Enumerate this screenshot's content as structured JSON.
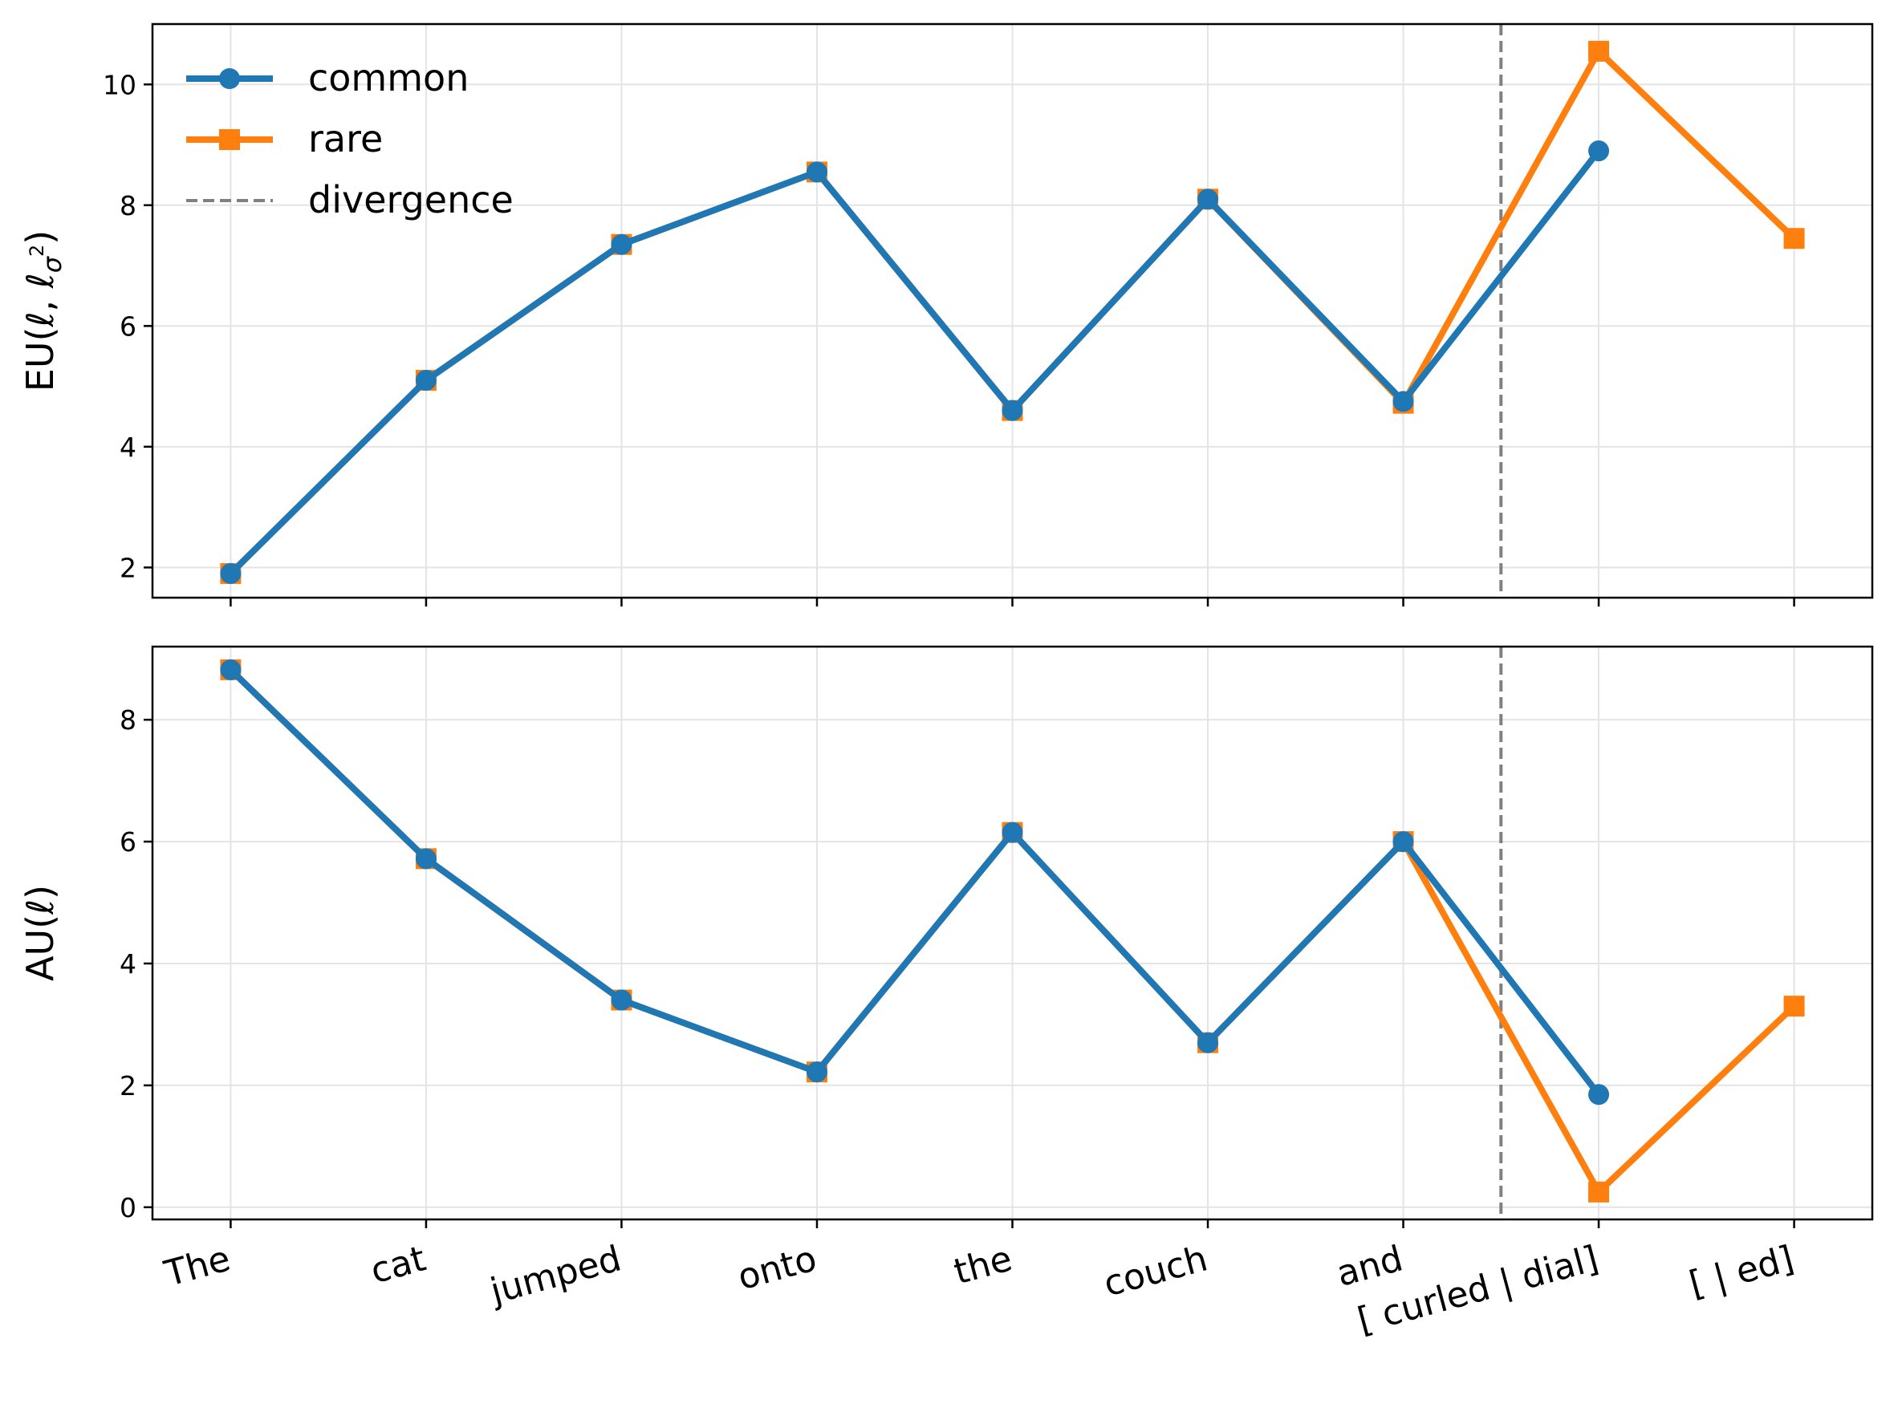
{
  "chart_data": {
    "type": "line",
    "categories": [
      "The",
      "cat",
      "jumped",
      "onto",
      "the",
      "couch",
      "and",
      "[ curled |  dial]",
      "[ | ed]"
    ],
    "category_lines": [
      [
        "The"
      ],
      [
        "cat"
      ],
      [
        "jumped"
      ],
      [
        "onto"
      ],
      [
        "the"
      ],
      [
        "couch"
      ],
      [
        "and"
      ],
      [
        "[ curled |  dial]"
      ],
      [
        "[ | ed]"
      ]
    ],
    "grid": true,
    "legend": {
      "placement": "top-left",
      "entries": [
        "common",
        "rare",
        "divergence"
      ]
    },
    "colors": {
      "common": "#1f77b4",
      "rare": "#ff7f0e",
      "divergence": "#808080"
    },
    "divergence_x": 6.5,
    "panels": [
      {
        "ylabel": "EU(ℓ, ℓσ²)",
        "ylabel_main": "EU(ℓ, ℓ",
        "ylabel_sub": "σ",
        "ylabel_sup": "2",
        "ylabel_end": ")",
        "ylim": [
          1.5,
          11.0
        ],
        "yticks": [
          2,
          4,
          6,
          8,
          10
        ],
        "series": [
          {
            "name": "common",
            "marker": "circle",
            "x": [
              0,
              1,
              2,
              3,
              4,
              5,
              6,
              7
            ],
            "values": [
              1.9,
              5.1,
              7.35,
              8.55,
              4.6,
              8.1,
              4.75,
              8.9
            ]
          },
          {
            "name": "rare",
            "marker": "square",
            "x": [
              0,
              1,
              2,
              3,
              4,
              5,
              6,
              7,
              8
            ],
            "values": [
              1.9,
              5.1,
              7.35,
              8.55,
              4.6,
              8.1,
              4.72,
              10.55,
              7.45
            ]
          }
        ]
      },
      {
        "ylabel": "AU(ℓ)",
        "ylim": [
          -0.2,
          9.2
        ],
        "yticks": [
          0,
          2,
          4,
          6,
          8
        ],
        "series": [
          {
            "name": "common",
            "marker": "circle",
            "x": [
              0,
              1,
              2,
              3,
              4,
              5,
              6,
              7
            ],
            "values": [
              8.82,
              5.72,
              3.4,
              2.22,
              6.15,
              2.7,
              6.0,
              1.85
            ]
          },
          {
            "name": "rare",
            "marker": "square",
            "x": [
              0,
              1,
              2,
              3,
              4,
              5,
              6,
              7,
              8
            ],
            "values": [
              8.82,
              5.72,
              3.4,
              2.22,
              6.15,
              2.7,
              6.0,
              0.25,
              3.3
            ]
          }
        ]
      }
    ]
  }
}
